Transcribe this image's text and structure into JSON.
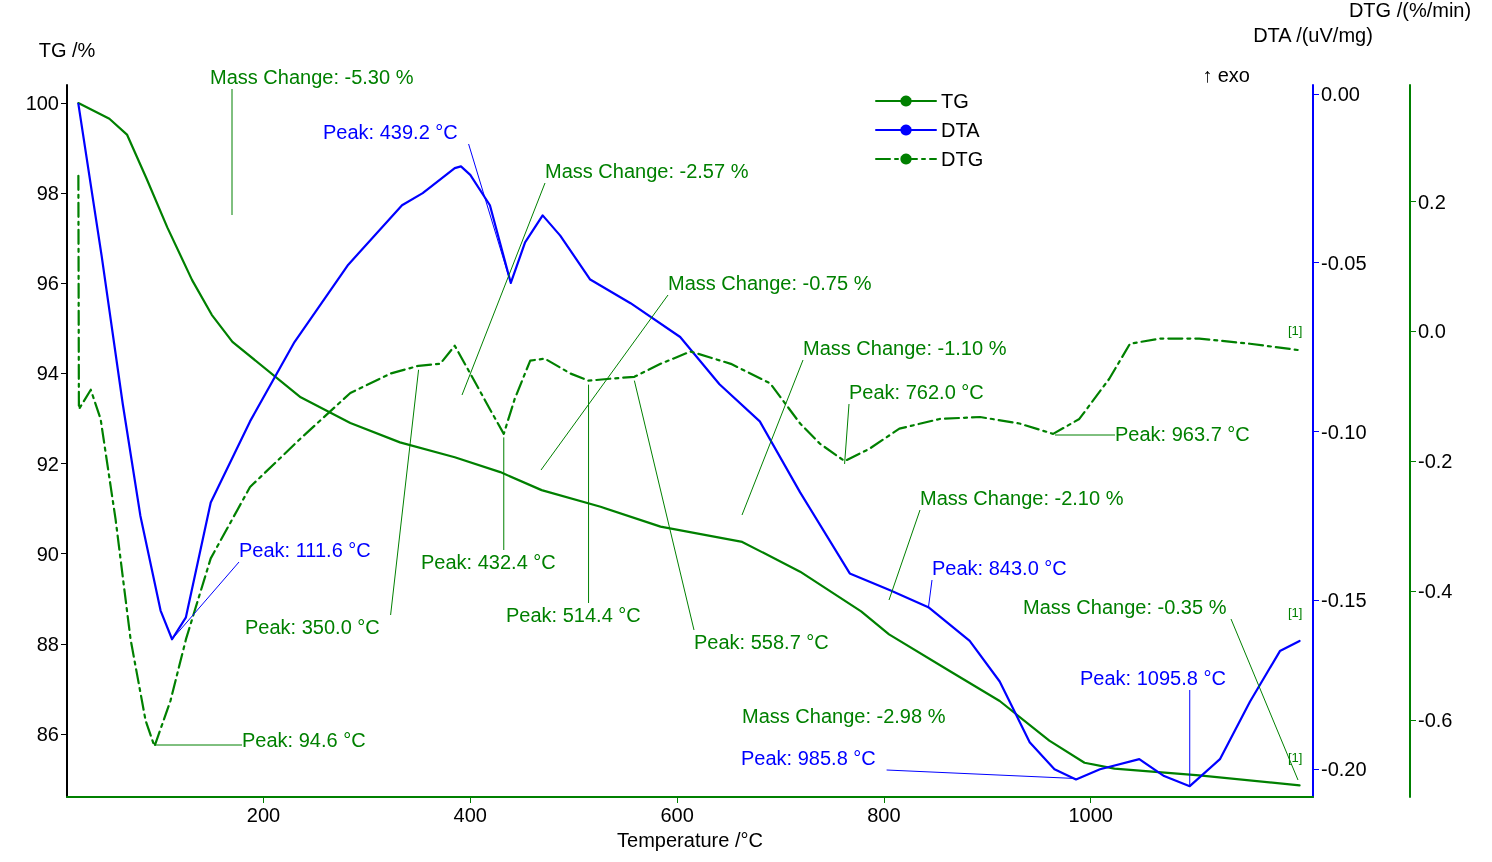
{
  "chart_data": {
    "type": "line",
    "xlabel": "Temperature /°C",
    "ylabel": "TG /%",
    "y2label": "DTA /(uV/mg)",
    "y3label": "DTG /(%/min)",
    "xlim": [
      10,
      1215
    ],
    "xticks": [
      200,
      400,
      600,
      800,
      1000
    ],
    "ylim": [
      84.6,
      100.4
    ],
    "yticks": [
      86,
      88,
      90,
      92,
      94,
      96,
      98,
      100
    ],
    "y2lim": [
      -0.2082,
      0.0026
    ],
    "y2ticks": [
      {
        "value": 0,
        "label": "0.00"
      },
      {
        "value": -0.05,
        "label": "-0.05"
      },
      {
        "value": -0.1,
        "label": "-0.10"
      },
      {
        "value": -0.15,
        "label": "-0.15"
      },
      {
        "value": -0.2,
        "label": "-0.20"
      }
    ],
    "y3lim": [
      -0.718,
      0.38
    ],
    "y3ticks": [
      {
        "value": 0.2,
        "label": "0.2"
      },
      {
        "value": 0,
        "label": "0.0"
      },
      {
        "value": -0.2,
        "label": "-0.2"
      },
      {
        "value": -0.4,
        "label": "-0.4"
      },
      {
        "value": -0.6,
        "label": "-0.6"
      }
    ],
    "legend": "top right",
    "series": [
      {
        "name": "TG",
        "color": "#008000",
        "line_style": "solid",
        "x": [
          21,
          51,
          68,
          87,
          107,
          131,
          150,
          170,
          236,
          284,
          332,
          385,
          429,
          469,
          526,
          584,
          663,
          719,
          778,
          805,
          864,
          912,
          960,
          994,
          1023,
          1105,
          1202
        ],
        "values": [
          100,
          99.65,
          99.3,
          98.32,
          97.24,
          96.07,
          95.3,
          94.7,
          93.47,
          92.9,
          92.47,
          92.14,
          91.81,
          91.41,
          91.04,
          90.6,
          90.26,
          89.6,
          88.72,
          88.21,
          87.39,
          86.73,
          85.85,
          85.36,
          85.23,
          85.08,
          84.86
        ]
      },
      {
        "name": "DTA",
        "color": "#0000ff",
        "line_style": "solid",
        "axis": "y2",
        "x": [
          21,
          43.5,
          64,
          81,
          100.5,
          111.6,
          125,
          149,
          187,
          230,
          282,
          334,
          354,
          385,
          391,
          400,
          419,
          439.2,
          453,
          470,
          487,
          516,
          555,
          603,
          641,
          680,
          719,
          767,
          806,
          843,
          883,
          912,
          941,
          965,
          985.8,
          1009,
          1047,
          1071,
          1095.8,
          1125,
          1154,
          1183,
          1202
        ],
        "values": [
          -0.003,
          -0.048,
          -0.092,
          -0.125,
          -0.153,
          -0.1615,
          -0.155,
          -0.121,
          -0.097,
          -0.0735,
          -0.0506,
          -0.033,
          -0.0294,
          -0.022,
          -0.0215,
          -0.024,
          -0.033,
          -0.056,
          -0.044,
          -0.036,
          -0.042,
          -0.055,
          -0.062,
          -0.072,
          -0.086,
          -0.097,
          -0.118,
          -0.142,
          -0.147,
          -0.152,
          -0.162,
          -0.174,
          -0.192,
          -0.2,
          -0.203,
          -0.2,
          -0.197,
          -0.202,
          -0.205,
          -0.197,
          -0.18,
          -0.165,
          -0.162
        ]
      },
      {
        "name": "DTG",
        "color": "#008000",
        "line_style": "dashed",
        "axis": "y3",
        "x": [
          21,
          21.5,
          33,
          42.5,
          57,
          71.5,
          86,
          94.6,
          110,
          125,
          149,
          187,
          236,
          284,
          323,
          350,
          371,
          385,
          400,
          419,
          432.4,
          443,
          458,
          472,
          497,
          514.4,
          535,
          558.7,
          584,
          613,
          652,
          690,
          719,
          738,
          762,
          786,
          815,
          854,
          893,
          931,
          963.7,
          989,
          1018,
          1038,
          1067,
          1105,
          1154,
          1202
        ],
        "values": [
          0.24,
          -0.12,
          -0.09,
          -0.135,
          -0.29,
          -0.475,
          -0.6,
          -0.64,
          -0.57,
          -0.475,
          -0.35,
          -0.24,
          -0.165,
          -0.095,
          -0.065,
          -0.053,
          -0.05,
          -0.022,
          -0.065,
          -0.12,
          -0.158,
          -0.104,
          -0.045,
          -0.042,
          -0.065,
          -0.076,
          -0.073,
          -0.07,
          -0.05,
          -0.031,
          -0.05,
          -0.08,
          -0.142,
          -0.173,
          -0.2,
          -0.181,
          -0.15,
          -0.135,
          -0.132,
          -0.142,
          -0.158,
          -0.135,
          -0.073,
          -0.019,
          -0.011,
          -0.011,
          -0.019,
          -0.029
        ]
      }
    ],
    "annotations": [
      "Mass Change: -5.30 %",
      {
        "text": "Peak: 439.2 °C",
        "x": 439.2,
        "y": 96.0
      },
      "Mass Change: -2.57 %",
      "Mass Change: -0.75 %",
      "Mass Change: -1.10 %",
      {
        "text": "Peak: 762.0 °C",
        "x": 762,
        "y": 91.99
      },
      "Peak: 963.7 °C",
      "Mass Change: -2.10 %",
      {
        "text": "Peak: 843.0 °C",
        "x": 843,
        "y": 88.79
      },
      "Mass Change: -0.35 %",
      {
        "text": "Peak: 1095.8 °C",
        "x": 1095.8,
        "y": 84.86
      },
      "Mass Change: -2.98 %",
      {
        "text": "Peak: 985.8 °C",
        "x": 985.8,
        "y": 85.01
      },
      {
        "text": "Peak: 111.6 °C",
        "x": 111.6,
        "y": 88.1
      },
      {
        "text": "Peak: 350.0 °C",
        "x": 350,
        "y": 94.08
      },
      {
        "text": "Peak: 432.4 °C",
        "x": 432.4,
        "y": 92.58
      },
      {
        "text": "Peak: 514.4 °C",
        "x": 514.4,
        "y": 93.75
      },
      {
        "text": "Peak: 558.7 °C",
        "x": 558.7,
        "y": 93.84
      },
      "Peak: 94.6 °C",
      "[1]",
      "[1]",
      "[1]",
      "↑ exo"
    ]
  }
}
